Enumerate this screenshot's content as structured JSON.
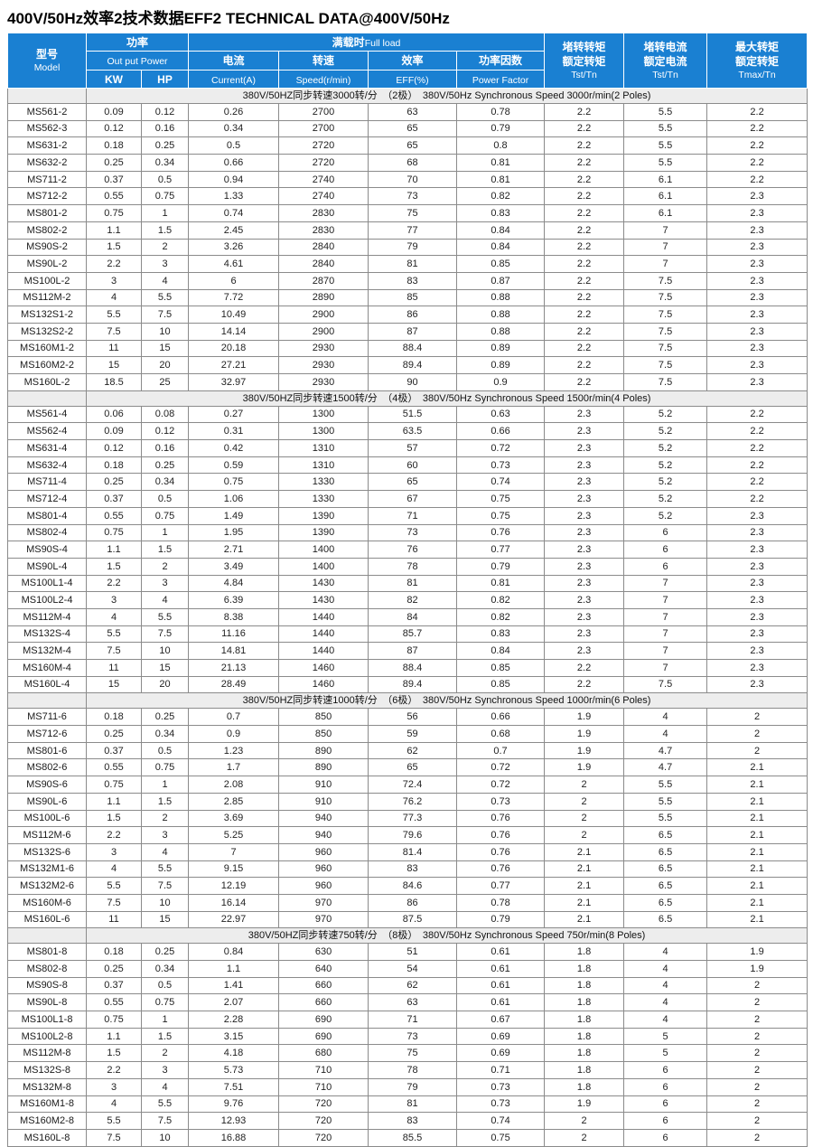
{
  "title": "400V/50Hz效率2技术数据EFF2 TECHNICAL DATA@400V/50Hz",
  "colors": {
    "header_bg": "#1a80d2",
    "header_text": "#ffffff",
    "section_bg": "#ededed",
    "border": "#8b8b8b"
  },
  "header": {
    "model": {
      "zh": "型号",
      "en": "Model"
    },
    "power": {
      "zh": "功率",
      "en": "Out put Power",
      "sub": [
        "KW",
        "HP"
      ]
    },
    "full_load": {
      "zh": "满载时",
      "en": "Full load",
      "cols": [
        {
          "zh": "电流",
          "en": "Current(A)"
        },
        {
          "zh": "转速",
          "en": "Speed(r/min)"
        },
        {
          "zh": "效率",
          "en": "EFF(%)"
        },
        {
          "zh": "功率因数",
          "en": "Power Factor"
        }
      ]
    },
    "torque_cols": [
      {
        "line1": "堵转转矩",
        "line2": "额定转矩",
        "line3": "Tst/Tn"
      },
      {
        "line1": "堵转电流",
        "line2": "额定电流",
        "line3": "Tst/Tn"
      },
      {
        "line1": "最大转矩",
        "line2": "额定转矩",
        "line3": "Tmax/Tn"
      }
    ]
  },
  "sections": [
    {
      "heading": "380V/50HZ同步转速3000转/分　（2极）　380V/50Hz Synchronous Speed 3000r/min(2 Poles)",
      "rows": [
        [
          "MS561-2",
          "0.09",
          "0.12",
          "0.26",
          "2700",
          "63",
          "0.78",
          "2.2",
          "5.5",
          "2.2"
        ],
        [
          "MS562-3",
          "0.12",
          "0.16",
          "0.34",
          "2700",
          "65",
          "0.79",
          "2.2",
          "5.5",
          "2.2"
        ],
        [
          "MS631-2",
          "0.18",
          "0.25",
          "0.5",
          "2720",
          "65",
          "0.8",
          "2.2",
          "5.5",
          "2.2"
        ],
        [
          "MS632-2",
          "0.25",
          "0.34",
          "0.66",
          "2720",
          "68",
          "0.81",
          "2.2",
          "5.5",
          "2.2"
        ],
        [
          "MS711-2",
          "0.37",
          "0.5",
          "0.94",
          "2740",
          "70",
          "0.81",
          "2.2",
          "6.1",
          "2.2"
        ],
        [
          "MS712-2",
          "0.55",
          "0.75",
          "1.33",
          "2740",
          "73",
          "0.82",
          "2.2",
          "6.1",
          "2.3"
        ],
        [
          "MS801-2",
          "0.75",
          "1",
          "0.74",
          "2830",
          "75",
          "0.83",
          "2.2",
          "6.1",
          "2.3"
        ],
        [
          "MS802-2",
          "1.1",
          "1.5",
          "2.45",
          "2830",
          "77",
          "0.84",
          "2.2",
          "7",
          "2.3"
        ],
        [
          "MS90S-2",
          "1.5",
          "2",
          "3.26",
          "2840",
          "79",
          "0.84",
          "2.2",
          "7",
          "2.3"
        ],
        [
          "MS90L-2",
          "2.2",
          "3",
          "4.61",
          "2840",
          "81",
          "0.85",
          "2.2",
          "7",
          "2.3"
        ],
        [
          "MS100L-2",
          "3",
          "4",
          "6",
          "2870",
          "83",
          "0.87",
          "2.2",
          "7.5",
          "2.3"
        ],
        [
          "MS112M-2",
          "4",
          "5.5",
          "7.72",
          "2890",
          "85",
          "0.88",
          "2.2",
          "7.5",
          "2.3"
        ],
        [
          "MS132S1-2",
          "5.5",
          "7.5",
          "10.49",
          "2900",
          "86",
          "0.88",
          "2.2",
          "7.5",
          "2.3"
        ],
        [
          "MS132S2-2",
          "7.5",
          "10",
          "14.14",
          "2900",
          "87",
          "0.88",
          "2.2",
          "7.5",
          "2.3"
        ],
        [
          "MS160M1-2",
          "11",
          "15",
          "20.18",
          "2930",
          "88.4",
          "0.89",
          "2.2",
          "7.5",
          "2.3"
        ],
        [
          "MS160M2-2",
          "15",
          "20",
          "27.21",
          "2930",
          "89.4",
          "0.89",
          "2.2",
          "7.5",
          "2.3"
        ],
        [
          "MS160L-2",
          "18.5",
          "25",
          "32.97",
          "2930",
          "90",
          "0.9",
          "2.2",
          "7.5",
          "2.3"
        ]
      ]
    },
    {
      "heading": "380V/50HZ同步转速1500转/分　（4极）　380V/50Hz Synchronous Speed 1500r/min(4 Poles)",
      "rows": [
        [
          "MS561-4",
          "0.06",
          "0.08",
          "0.27",
          "1300",
          "51.5",
          "0.63",
          "2.3",
          "5.2",
          "2.2"
        ],
        [
          "MS562-4",
          "0.09",
          "0.12",
          "0.31",
          "1300",
          "63.5",
          "0.66",
          "2.3",
          "5.2",
          "2.2"
        ],
        [
          "MS631-4",
          "0.12",
          "0.16",
          "0.42",
          "1310",
          "57",
          "0.72",
          "2.3",
          "5.2",
          "2.2"
        ],
        [
          "MS632-4",
          "0.18",
          "0.25",
          "0.59",
          "1310",
          "60",
          "0.73",
          "2.3",
          "5.2",
          "2.2"
        ],
        [
          "MS711-4",
          "0.25",
          "0.34",
          "0.75",
          "1330",
          "65",
          "0.74",
          "2.3",
          "5.2",
          "2.2"
        ],
        [
          "MS712-4",
          "0.37",
          "0.5",
          "1.06",
          "1330",
          "67",
          "0.75",
          "2.3",
          "5.2",
          "2.2"
        ],
        [
          "MS801-4",
          "0.55",
          "0.75",
          "1.49",
          "1390",
          "71",
          "0.75",
          "2.3",
          "5.2",
          "2.3"
        ],
        [
          "MS802-4",
          "0.75",
          "1",
          "1.95",
          "1390",
          "73",
          "0.76",
          "2.3",
          "6",
          "2.3"
        ],
        [
          "MS90S-4",
          "1.1",
          "1.5",
          "2.71",
          "1400",
          "76",
          "0.77",
          "2.3",
          "6",
          "2.3"
        ],
        [
          "MS90L-4",
          "1.5",
          "2",
          "3.49",
          "1400",
          "78",
          "0.79",
          "2.3",
          "6",
          "2.3"
        ],
        [
          "MS100L1-4",
          "2.2",
          "3",
          "4.84",
          "1430",
          "81",
          "0.81",
          "2.3",
          "7",
          "2.3"
        ],
        [
          "MS100L2-4",
          "3",
          "4",
          "6.39",
          "1430",
          "82",
          "0.82",
          "2.3",
          "7",
          "2.3"
        ],
        [
          "MS112M-4",
          "4",
          "5.5",
          "8.38",
          "1440",
          "84",
          "0.82",
          "2.3",
          "7",
          "2.3"
        ],
        [
          "MS132S-4",
          "5.5",
          "7.5",
          "11.16",
          "1440",
          "85.7",
          "0.83",
          "2.3",
          "7",
          "2.3"
        ],
        [
          "MS132M-4",
          "7.5",
          "10",
          "14.81",
          "1440",
          "87",
          "0.84",
          "2.3",
          "7",
          "2.3"
        ],
        [
          "MS160M-4",
          "11",
          "15",
          "21.13",
          "1460",
          "88.4",
          "0.85",
          "2.2",
          "7",
          "2.3"
        ],
        [
          "MS160L-4",
          "15",
          "20",
          "28.49",
          "1460",
          "89.4",
          "0.85",
          "2.2",
          "7.5",
          "2.3"
        ]
      ]
    },
    {
      "heading": "380V/50HZ同步转速1000转/分　（6极）　380V/50Hz Synchronous Speed 1000r/min(6 Poles)",
      "rows": [
        [
          "MS711-6",
          "0.18",
          "0.25",
          "0.7",
          "850",
          "56",
          "0.66",
          "1.9",
          "4",
          "2"
        ],
        [
          "MS712-6",
          "0.25",
          "0.34",
          "0.9",
          "850",
          "59",
          "0.68",
          "1.9",
          "4",
          "2"
        ],
        [
          "MS801-6",
          "0.37",
          "0.5",
          "1.23",
          "890",
          "62",
          "0.7",
          "1.9",
          "4.7",
          "2"
        ],
        [
          "MS802-6",
          "0.55",
          "0.75",
          "1.7",
          "890",
          "65",
          "0.72",
          "1.9",
          "4.7",
          "2.1"
        ],
        [
          "MS90S-6",
          "0.75",
          "1",
          "2.08",
          "910",
          "72.4",
          "0.72",
          "2",
          "5.5",
          "2.1"
        ],
        [
          "MS90L-6",
          "1.1",
          "1.5",
          "2.85",
          "910",
          "76.2",
          "0.73",
          "2",
          "5.5",
          "2.1"
        ],
        [
          "MS100L-6",
          "1.5",
          "2",
          "3.69",
          "940",
          "77.3",
          "0.76",
          "2",
          "5.5",
          "2.1"
        ],
        [
          "MS112M-6",
          "2.2",
          "3",
          "5.25",
          "940",
          "79.6",
          "0.76",
          "2",
          "6.5",
          "2.1"
        ],
        [
          "MS132S-6",
          "3",
          "4",
          "7",
          "960",
          "81.4",
          "0.76",
          "2.1",
          "6.5",
          "2.1"
        ],
        [
          "MS132M1-6",
          "4",
          "5.5",
          "9.15",
          "960",
          "83",
          "0.76",
          "2.1",
          "6.5",
          "2.1"
        ],
        [
          "MS132M2-6",
          "5.5",
          "7.5",
          "12.19",
          "960",
          "84.6",
          "0.77",
          "2.1",
          "6.5",
          "2.1"
        ],
        [
          "MS160M-6",
          "7.5",
          "10",
          "16.14",
          "970",
          "86",
          "0.78",
          "2.1",
          "6.5",
          "2.1"
        ],
        [
          "MS160L-6",
          "11",
          "15",
          "22.97",
          "970",
          "87.5",
          "0.79",
          "2.1",
          "6.5",
          "2.1"
        ]
      ]
    },
    {
      "heading": "380V/50HZ同步转速750转/分　（8极）　380V/50Hz Synchronous Speed 750r/min(8 Poles)",
      "rows": [
        [
          "MS801-8",
          "0.18",
          "0.25",
          "0.84",
          "630",
          "51",
          "0.61",
          "1.8",
          "4",
          "1.9"
        ],
        [
          "MS802-8",
          "0.25",
          "0.34",
          "1.1",
          "640",
          "54",
          "0.61",
          "1.8",
          "4",
          "1.9"
        ],
        [
          "MS90S-8",
          "0.37",
          "0.5",
          "1.41",
          "660",
          "62",
          "0.61",
          "1.8",
          "4",
          "2"
        ],
        [
          "MS90L-8",
          "0.55",
          "0.75",
          "2.07",
          "660",
          "63",
          "0.61",
          "1.8",
          "4",
          "2"
        ],
        [
          "MS100L1-8",
          "0.75",
          "1",
          "2.28",
          "690",
          "71",
          "0.67",
          "1.8",
          "4",
          "2"
        ],
        [
          "MS100L2-8",
          "1.1",
          "1.5",
          "3.15",
          "690",
          "73",
          "0.69",
          "1.8",
          "5",
          "2"
        ],
        [
          "MS112M-8",
          "1.5",
          "2",
          "4.18",
          "680",
          "75",
          "0.69",
          "1.8",
          "5",
          "2"
        ],
        [
          "MS132S-8",
          "2.2",
          "3",
          "5.73",
          "710",
          "78",
          "0.71",
          "1.8",
          "6",
          "2"
        ],
        [
          "MS132M-8",
          "3",
          "4",
          "7.51",
          "710",
          "79",
          "0.73",
          "1.8",
          "6",
          "2"
        ],
        [
          "MS160M1-8",
          "4",
          "5.5",
          "9.76",
          "720",
          "81",
          "0.73",
          "1.9",
          "6",
          "2"
        ],
        [
          "MS160M2-8",
          "5.5",
          "7.5",
          "12.93",
          "720",
          "83",
          "0.74",
          "2",
          "6",
          "2"
        ],
        [
          "MS160L-8",
          "7.5",
          "10",
          "16.88",
          "720",
          "85.5",
          "0.75",
          "2",
          "6",
          "2"
        ]
      ]
    }
  ]
}
